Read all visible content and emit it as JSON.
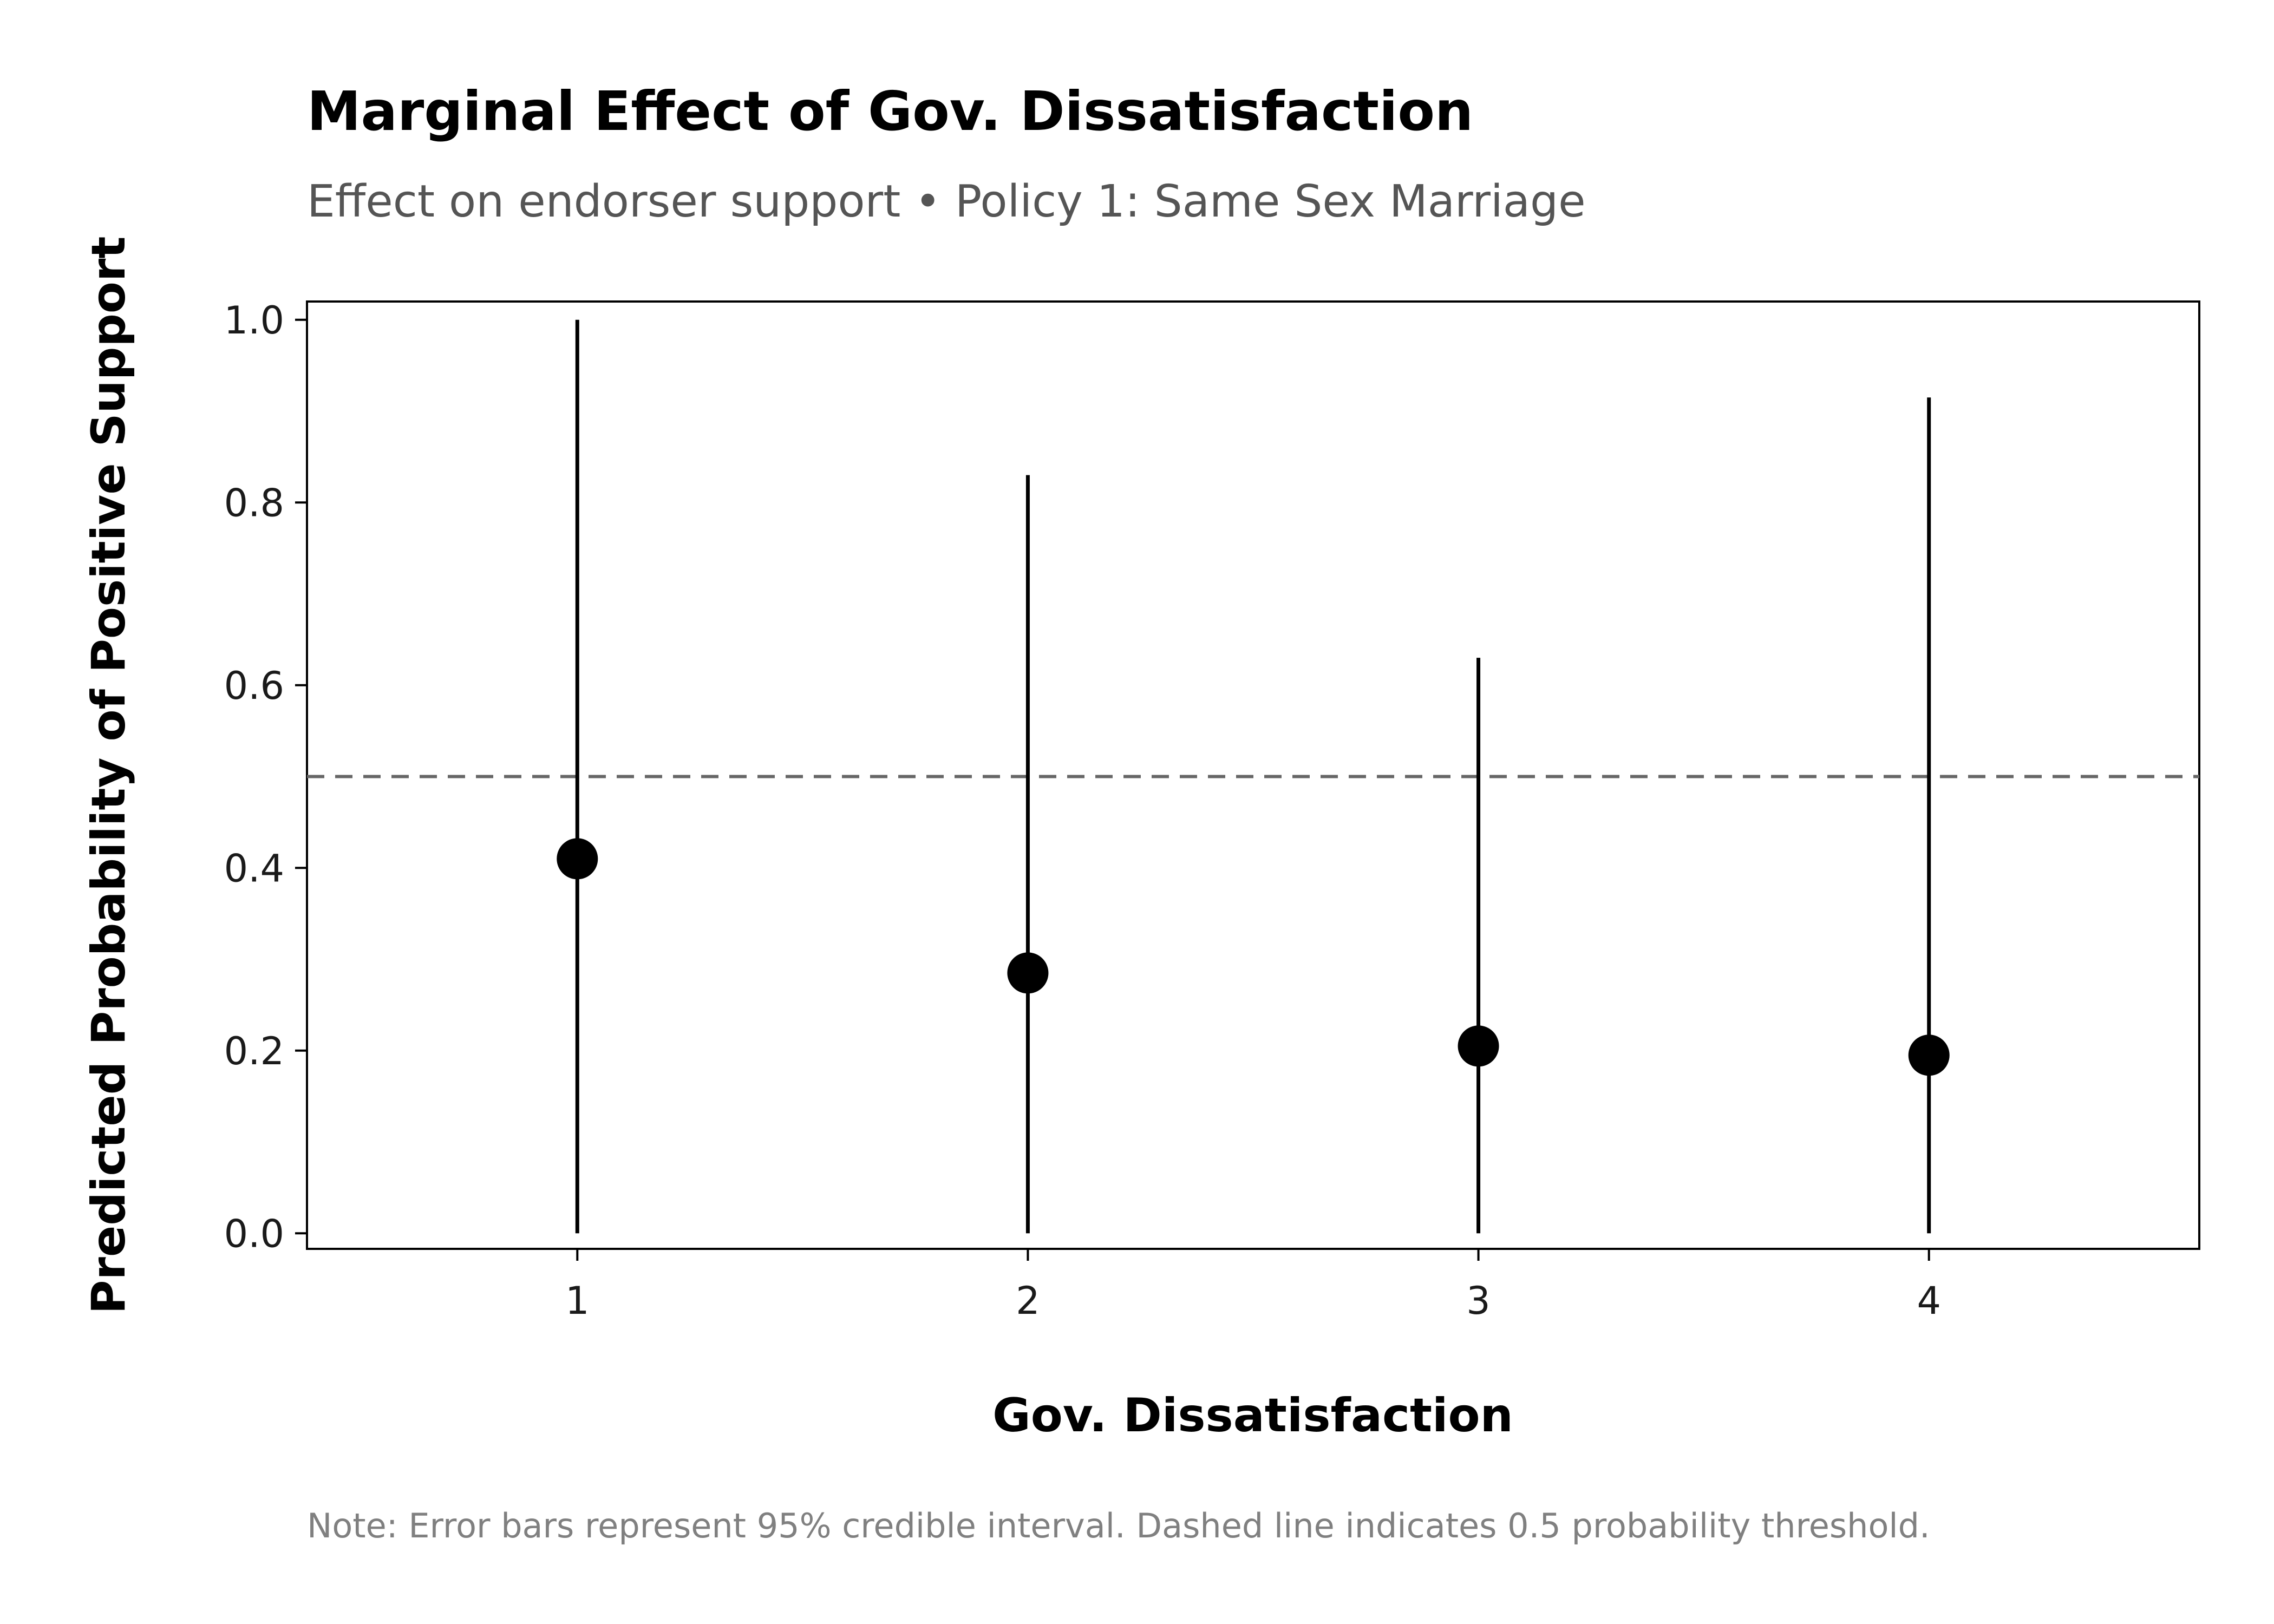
{
  "chart_data": {
    "type": "scatter",
    "title": "Marginal Effect of Gov. Dissatisfaction",
    "subtitle": "Effect on endorser support • Policy 1: Same Sex Marriage",
    "xlabel": "Gov. Dissatisfaction",
    "ylabel": "Predicted Probability of Positive Support",
    "note": "Note: Error bars represent 95% credible interval. Dashed line indicates 0.5 probability threshold.",
    "x": [
      1,
      2,
      3,
      4
    ],
    "y": [
      0.41,
      0.285,
      0.205,
      0.195
    ],
    "ci_lower": [
      0.0,
      0.0,
      0.0,
      0.0
    ],
    "ci_upper": [
      1.0,
      0.83,
      0.63,
      0.915
    ],
    "reference_line": 0.5,
    "xlim": [
      0.4,
      4.6
    ],
    "ylim": [
      -0.017,
      1.02
    ],
    "xticks": [
      "1",
      "2",
      "3",
      "4"
    ],
    "yticks": [
      "0.0",
      "0.2",
      "0.4",
      "0.6",
      "0.8",
      "1.0"
    ],
    "ytick_values": [
      0.0,
      0.2,
      0.4,
      0.6,
      0.8,
      1.0
    ],
    "grid": false,
    "colors": {
      "points": "#000000",
      "error_bars": "#000000",
      "reference_line": "#666666"
    }
  }
}
